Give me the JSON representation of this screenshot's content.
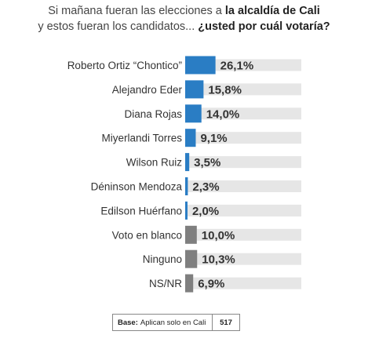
{
  "title": {
    "line1_plain": "Si mañana fueran las elecciones a ",
    "line1_bold": "la alcaldía de Cali",
    "line2_plain": "y estos  fueran los candidatos... ",
    "line2_bold": "¿usted por cuál votaría?"
  },
  "chart_data": {
    "type": "bar",
    "orientation": "horizontal",
    "categories": [
      "Roberto Ortiz “Chontico”",
      "Alejandro Eder",
      "Diana Rojas",
      "Miyerlandi Torres",
      "Wilson Ruiz",
      "Déninson Mendoza",
      "Edilson Huérfano",
      "Voto en blanco",
      "Ninguno",
      "NS/NR"
    ],
    "values": [
      26.1,
      15.8,
      14.0,
      9.1,
      3.5,
      2.3,
      2.0,
      10.0,
      10.3,
      6.9
    ],
    "value_labels": [
      "26,1%",
      "15,8%",
      "14,0%",
      "9,1%",
      "3,5%",
      "2,3%",
      "2,0%",
      "10,0%",
      "10,3%",
      "6,9%"
    ],
    "bar_colors": [
      "#2a7dc4",
      "#2a7dc4",
      "#2a7dc4",
      "#2a7dc4",
      "#2a7dc4",
      "#2a7dc4",
      "#2a7dc4",
      "#7f7f7f",
      "#7f7f7f",
      "#7f7f7f"
    ],
    "track_color": "#e6e6e6",
    "xlim": [
      0,
      100
    ],
    "grid": false,
    "legend": "none"
  },
  "base": {
    "label": "Base:",
    "text": "Aplican solo en Cali",
    "value": "517"
  }
}
